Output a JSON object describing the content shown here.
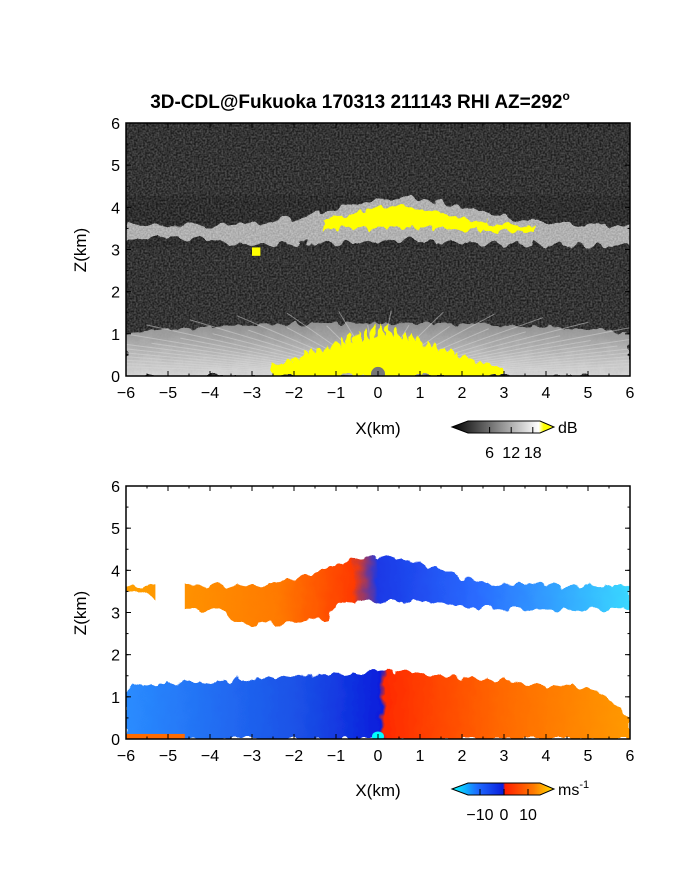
{
  "title": "3D-CDL@Fukuoka 170313 211143 RHI AZ=292",
  "title_suffix": "o",
  "chart_data": [
    {
      "type": "heatmap",
      "name": "reflectivity",
      "xlabel": "X(km)",
      "ylabel": "Z(km)",
      "xlim": [
        -6,
        6
      ],
      "ylim": [
        0,
        6
      ],
      "x_ticks": [
        "-6",
        "-5",
        "-4",
        "-3",
        "-2",
        "-1",
        "0",
        "1",
        "2",
        "3",
        "4",
        "5",
        "6"
      ],
      "y_ticks": [
        "0",
        "1",
        "2",
        "3",
        "4",
        "5",
        "6"
      ],
      "colorbar": {
        "unit": "dB",
        "ticks": [
          "6",
          "12",
          "18"
        ],
        "range": [
          0,
          20
        ],
        "colors": [
          "#000000",
          "#ffffff",
          "#ffff00"
        ]
      },
      "background_color": "#1c1c1c",
      "regions": [
        {
          "kind": "ground_fan",
          "x_range": [
            -6,
            6
          ],
          "z_top_edge": 1.3,
          "z_top_center": 1.25,
          "value": 14
        },
        {
          "kind": "saturated_fan",
          "x_range": [
            -2.5,
            3.0
          ],
          "z_top": 1.3,
          "value": 19
        },
        {
          "kind": "cloud_layer",
          "x_range": [
            -6,
            6
          ],
          "z_range": [
            3.0,
            4.2
          ],
          "value": 12
        },
        {
          "kind": "saturated_cloud",
          "x_range": [
            -1.3,
            3.7
          ],
          "z_range": [
            3.3,
            4.1
          ],
          "value": 19
        },
        {
          "kind": "saturated_patch",
          "x_range": [
            -3.0,
            -2.8
          ],
          "z_range": [
            2.85,
            3.05
          ],
          "value": 19
        }
      ]
    },
    {
      "type": "heatmap",
      "name": "doppler_velocity",
      "xlabel": "X(km)",
      "ylabel": "Z(km)",
      "xlim": [
        -6,
        6
      ],
      "ylim": [
        0,
        6
      ],
      "x_ticks": [
        "-6",
        "-5",
        "-4",
        "-3",
        "-2",
        "-1",
        "0",
        "1",
        "2",
        "3",
        "4",
        "5",
        "6"
      ],
      "y_ticks": [
        "0",
        "1",
        "2",
        "3",
        "4",
        "5",
        "6"
      ],
      "colorbar": {
        "unit": "ms",
        "unit_exponent": "-1",
        "ticks": [
          "-10",
          "0",
          "10"
        ],
        "range": [
          -15,
          15
        ],
        "colors": [
          "#00ffff",
          "#1e6bff",
          "#0a1edc",
          "#ff1e00",
          "#ff7a00",
          "#ffe000"
        ]
      },
      "regions": [
        {
          "kind": "lower_layer",
          "x_range": [
            -6,
            6
          ],
          "z_range": [
            0,
            1.7
          ],
          "velocity_left": -8,
          "velocity_right": 6
        },
        {
          "kind": "upper_layer",
          "x_range": [
            -6,
            6
          ],
          "z_range": [
            2.7,
            4.4
          ],
          "velocity_left": 5,
          "velocity_right": -11
        }
      ]
    }
  ]
}
